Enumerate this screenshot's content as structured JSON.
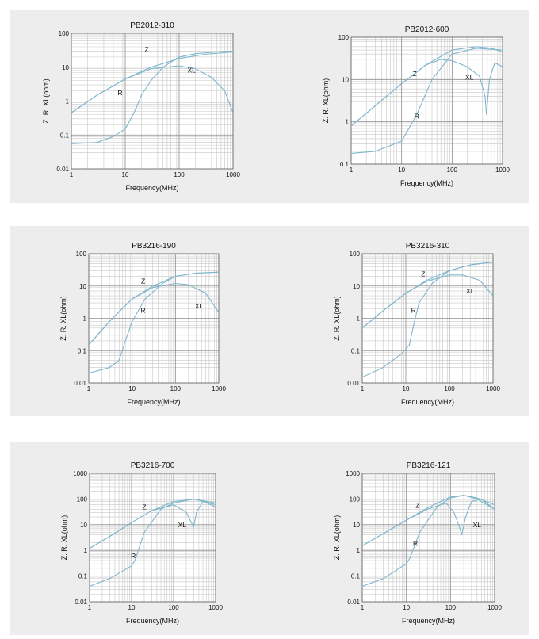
{
  "colors": {
    "curve": "#7fb6cc",
    "grid_major": "#8c8c8c",
    "grid_minor": "#c7c7c7",
    "panel_bg": "#ededed",
    "plot_bg": "#ffffff"
  },
  "chart_data": [
    {
      "type": "line",
      "title": "PB2012-310",
      "xscale": "log",
      "yscale": "log",
      "xlim": [
        1,
        1000
      ],
      "ylim": [
        0.01,
        100
      ],
      "xticks": [
        "1",
        "10",
        "100",
        "1000"
      ],
      "yticks": [
        "0.01",
        "0.1",
        "1",
        "10",
        "100"
      ],
      "xlabel": "Frequency(MHz)",
      "ylabel": "Z. R. XL(ohm)",
      "series": [
        {
          "name": "Z",
          "x": [
            1,
            3,
            10,
            30,
            100,
            300,
            1000
          ],
          "y": [
            0.45,
            1.5,
            4.5,
            10,
            18,
            24,
            28
          ]
        },
        {
          "name": "R",
          "x": [
            1,
            3,
            6,
            10,
            15,
            20,
            30,
            50,
            100,
            200,
            500,
            1000
          ],
          "y": [
            0.055,
            0.06,
            0.09,
            0.15,
            0.5,
            1.5,
            4,
            10,
            20,
            25,
            28,
            30
          ]
        },
        {
          "name": "XL",
          "x": [
            1,
            3,
            10,
            30,
            100,
            200,
            400,
            700,
            1000
          ],
          "y": [
            0.45,
            1.5,
            4.5,
            9,
            11,
            9,
            5,
            2,
            0.45
          ]
        }
      ]
    },
    {
      "type": "line",
      "title": "PB2012-600",
      "xscale": "log",
      "yscale": "log",
      "xlim": [
        1,
        1000
      ],
      "ylim": [
        0.1,
        100
      ],
      "xticks": [
        "1",
        "10",
        "100",
        "1000"
      ],
      "yticks": [
        "0.1",
        "1",
        "10",
        "100"
      ],
      "xlabel": "Frequency(MHz)",
      "ylabel": "Z. R. XL(ohm)",
      "series": [
        {
          "name": "Z",
          "x": [
            1,
            3,
            10,
            30,
            100,
            300,
            600,
            1000
          ],
          "y": [
            0.8,
            2.4,
            8,
            22,
            50,
            60,
            55,
            45
          ]
        },
        {
          "name": "R",
          "x": [
            1,
            3,
            10,
            20,
            40,
            100,
            300,
            1000
          ],
          "y": [
            0.18,
            0.2,
            0.35,
            1.5,
            10,
            40,
            55,
            50
          ]
        },
        {
          "name": "XL",
          "x": [
            1,
            3,
            10,
            30,
            60,
            100,
            200,
            350,
            450,
            480,
            550,
            700,
            1000
          ],
          "y": [
            0.8,
            2.4,
            8,
            22,
            30,
            28,
            20,
            12,
            4,
            1.5,
            10,
            25,
            20
          ]
        }
      ]
    },
    {
      "type": "line",
      "title": "PB3216-190",
      "xscale": "log",
      "yscale": "log",
      "xlim": [
        1,
        1000
      ],
      "ylim": [
        0.01,
        100
      ],
      "xticks": [
        "1",
        "10",
        "100",
        "1000"
      ],
      "yticks": [
        "0.01",
        "0.1",
        "1",
        "10",
        "100"
      ],
      "xlabel": "Frequency(MHz)",
      "ylabel": "Z. R. XL(ohm)",
      "series": [
        {
          "name": "Z",
          "x": [
            1,
            3,
            10,
            30,
            100,
            300,
            1000
          ],
          "y": [
            0.15,
            0.8,
            4,
            10,
            20,
            25,
            27
          ]
        },
        {
          "name": "R",
          "x": [
            1,
            3,
            5,
            7,
            10,
            20,
            50,
            100,
            300,
            1000
          ],
          "y": [
            0.02,
            0.03,
            0.05,
            0.2,
            0.8,
            4,
            12,
            20,
            25,
            27
          ]
        },
        {
          "name": "XL",
          "x": [
            1,
            3,
            10,
            30,
            100,
            200,
            500,
            1000
          ],
          "y": [
            0.15,
            0.8,
            4,
            9,
            12,
            11,
            6,
            1.5
          ]
        }
      ]
    },
    {
      "type": "line",
      "title": "PB3216-310",
      "xscale": "log",
      "yscale": "log",
      "xlim": [
        1,
        1000
      ],
      "ylim": [
        0.01,
        100
      ],
      "xticks": [
        "1",
        "10",
        "100",
        "1000"
      ],
      "yticks": [
        "0.01",
        "0.1",
        "1",
        "10",
        "100"
      ],
      "xlabel": "Frequency(MHz)",
      "ylabel": "Z. R. XL(ohm)",
      "series": [
        {
          "name": "Z",
          "x": [
            1,
            3,
            10,
            30,
            100,
            300,
            1000
          ],
          "y": [
            0.5,
            1.7,
            6,
            15,
            30,
            45,
            55
          ]
        },
        {
          "name": "R",
          "x": [
            1,
            3,
            8,
            12,
            15,
            20,
            40,
            100,
            300,
            1000
          ],
          "y": [
            0.015,
            0.03,
            0.08,
            0.15,
            0.6,
            3,
            12,
            30,
            45,
            55
          ]
        },
        {
          "name": "XL",
          "x": [
            1,
            3,
            10,
            30,
            100,
            200,
            500,
            1000
          ],
          "y": [
            0.5,
            1.7,
            6,
            14,
            22,
            22,
            15,
            5
          ]
        }
      ]
    },
    {
      "type": "line",
      "title": "PB3216-700",
      "xscale": "log",
      "yscale": "log",
      "xlim": [
        1,
        1000
      ],
      "ylim": [
        0.01,
        1000
      ],
      "xticks": [
        "1",
        "10",
        "100",
        "1000"
      ],
      "yticks": [
        "0.01",
        "0.1",
        "1",
        "10",
        "100",
        "1000"
      ],
      "xlabel": "Frequency(MHz)",
      "ylabel": "Z. R. XL(ohm)",
      "series": [
        {
          "name": "Z",
          "x": [
            1,
            3,
            10,
            30,
            100,
            300,
            1000
          ],
          "y": [
            1.2,
            3.5,
            12,
            35,
            80,
            100,
            60
          ]
        },
        {
          "name": "R",
          "x": [
            1,
            3,
            10,
            12,
            20,
            50,
            100,
            300,
            1000
          ],
          "y": [
            0.04,
            0.08,
            0.25,
            0.4,
            5,
            40,
            70,
            100,
            70
          ]
        },
        {
          "name": "XL",
          "x": [
            1,
            3,
            10,
            30,
            100,
            200,
            280,
            300,
            350,
            500,
            1000
          ],
          "y": [
            1.2,
            3.5,
            12,
            35,
            60,
            30,
            10,
            8,
            30,
            80,
            50
          ]
        }
      ]
    },
    {
      "type": "line",
      "title": "PB3216-121",
      "xscale": "log",
      "yscale": "log",
      "xlim": [
        1,
        1000
      ],
      "ylim": [
        0.01,
        1000
      ],
      "xticks": [
        "1",
        "10",
        "100",
        "1000"
      ],
      "yticks": [
        "0.01",
        "0.1",
        "1",
        "10",
        "100",
        "1000"
      ],
      "xlabel": "Frequency(MHz)",
      "ylabel": "Z. R. XL(ohm)",
      "series": [
        {
          "name": "Z",
          "x": [
            1,
            3,
            10,
            30,
            100,
            200,
            400,
            1000
          ],
          "y": [
            1.5,
            4.5,
            15,
            45,
            120,
            140,
            110,
            60
          ]
        },
        {
          "name": "R",
          "x": [
            1,
            3,
            10,
            12,
            20,
            50,
            100,
            200,
            400,
            1000
          ],
          "y": [
            0.04,
            0.08,
            0.3,
            0.5,
            5,
            50,
            110,
            140,
            100,
            40
          ]
        },
        {
          "name": "XL",
          "x": [
            1,
            3,
            10,
            30,
            80,
            120,
            160,
            180,
            220,
            300,
            500,
            1000
          ],
          "y": [
            1.5,
            4.5,
            15,
            40,
            70,
            30,
            8,
            4,
            20,
            80,
            100,
            40
          ]
        }
      ]
    }
  ]
}
